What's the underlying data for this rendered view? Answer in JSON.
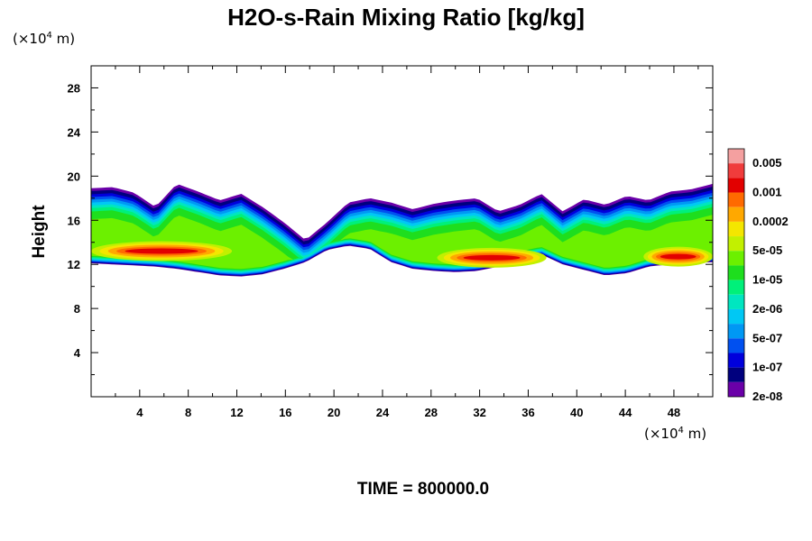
{
  "chart_data": {
    "type": "heatmap",
    "title": "H2O-s-Rain Mixing Ratio [kg/kg]",
    "xlabel": "",
    "ylabel": "Height",
    "x_unit_prefix": "(×10",
    "x_unit_exp": "4",
    "x_unit_suffix": " m)",
    "y_unit_prefix": "(×10",
    "y_unit_exp": "4",
    "y_unit_suffix": " m)",
    "xlim": [
      0,
      51.2
    ],
    "ylim": [
      0,
      30
    ],
    "x_ticks": [
      "4",
      "8",
      "12",
      "16",
      "20",
      "24",
      "28",
      "32",
      "36",
      "40",
      "44",
      "48"
    ],
    "y_ticks": [
      "4",
      "8",
      "12",
      "16",
      "20",
      "24",
      "28"
    ],
    "x_tick_values": [
      4,
      8,
      12,
      16,
      20,
      24,
      28,
      32,
      36,
      40,
      44,
      48
    ],
    "y_tick_values": [
      4,
      8,
      12,
      16,
      20,
      24,
      28
    ],
    "colorbar_labels": [
      "0.005",
      "0.001",
      "0.0002",
      "5e-05",
      "1e-05",
      "2e-06",
      "5e-07",
      "1e-07",
      "2e-08"
    ],
    "colorbar_colors": [
      "#f4a0a0",
      "#f03c3c",
      "#e20000",
      "#ff6a00",
      "#ffa800",
      "#f4e600",
      "#c2f000",
      "#6cf000",
      "#1ede1e",
      "#00f07a",
      "#00e6c0",
      "#00c8f4",
      "#0098f4",
      "#0050f0",
      "#0000dc",
      "#00007e",
      "#6a00a8"
    ],
    "band_top": [
      18.9,
      19.0,
      18.5,
      17.2,
      19.3,
      18.6,
      17.8,
      18.4,
      17.2,
      15.8,
      14.2,
      15.8,
      17.6,
      18.0,
      17.6,
      17.0,
      17.5,
      17.8,
      18.0,
      16.8,
      17.4,
      18.4,
      16.8,
      17.9,
      17.4,
      18.2,
      17.8,
      18.6,
      18.8,
      19.3
    ],
    "band_bottom": [
      12.1,
      12.0,
      11.9,
      11.8,
      11.6,
      11.3,
      11.0,
      10.9,
      11.1,
      11.6,
      12.2,
      13.3,
      13.7,
      13.4,
      12.2,
      11.6,
      11.4,
      11.3,
      11.4,
      11.8,
      12.5,
      12.9,
      12.0,
      11.5,
      11.0,
      11.2,
      11.8,
      12.0,
      12.1,
      12.2
    ],
    "core_segments": [
      {
        "x0": 0,
        "x1": 11.6,
        "y": 13.2,
        "peak_x": 4.5
      },
      {
        "x0": 28.5,
        "x1": 37.5,
        "y": 12.6,
        "peak_x": 33
      },
      {
        "x0": 45.5,
        "x1": 51.2,
        "y": 12.7,
        "peak_x": 50
      }
    ]
  },
  "time_label": "TIME = 800000.0"
}
